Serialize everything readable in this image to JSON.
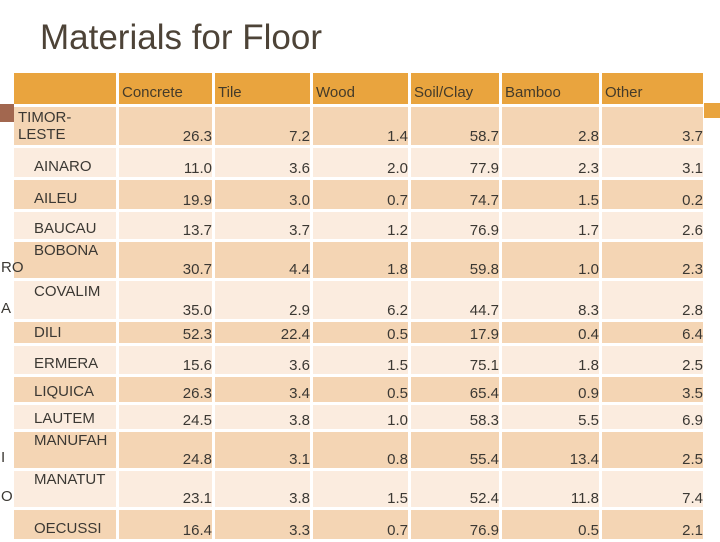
{
  "slide": {
    "title": "Materials for Floor"
  },
  "colors": {
    "header_bg": "#E9A43E",
    "header_text": "#443B2A",
    "row_dark": "#F4D5B4",
    "row_light": "#FBECDF",
    "table_text": "#3B3833",
    "title_text": "#4D4337",
    "accent_left_square": "#A2674F",
    "accent_right_square": "#E9A43E"
  },
  "table": {
    "corner_label": "",
    "columns": [
      "Concrete",
      "Tile",
      "Wood",
      "Soil/Clay",
      "Bamboo",
      "Other"
    ],
    "rows": [
      {
        "name": "TIMOR-LESTE",
        "label_lines": [
          "TIMOR-",
          "LESTE"
        ],
        "values": [
          "26.3",
          "7.2",
          "1.4",
          "58.7",
          "2.8",
          "3.7"
        ]
      },
      {
        "name": "AINARO",
        "label_lines": [
          "AINARO"
        ],
        "values": [
          "11.0",
          "3.6",
          "2.0",
          "77.9",
          "2.3",
          "3.1"
        ]
      },
      {
        "name": "AILEU",
        "label_lines": [
          "AILEU"
        ],
        "values": [
          "19.9",
          "3.0",
          "0.7",
          "74.7",
          "1.5",
          "0.2"
        ]
      },
      {
        "name": "BAUCAU",
        "label_lines": [
          "BAUCAU"
        ],
        "values": [
          "13.7",
          "3.7",
          "1.2",
          "76.9",
          "1.7",
          "2.6"
        ]
      },
      {
        "name": "BOBONARO",
        "label_lines": [
          "BOBONA",
          "RO"
        ],
        "values": [
          "30.7",
          "4.4",
          "1.8",
          "59.8",
          "1.0",
          "2.3"
        ]
      },
      {
        "name": "COVALIMA",
        "label_lines": [
          "COVALIM",
          "A"
        ],
        "values": [
          "35.0",
          "2.9",
          "6.2",
          "44.7",
          "8.3",
          "2.8"
        ]
      },
      {
        "name": "DILI",
        "label_lines": [
          "DILI"
        ],
        "values": [
          "52.3",
          "22.4",
          "0.5",
          "17.9",
          "0.4",
          "6.4"
        ]
      },
      {
        "name": "ERMERA",
        "label_lines": [
          "ERMERA"
        ],
        "values": [
          "15.6",
          "3.6",
          "1.5",
          "75.1",
          "1.8",
          "2.5"
        ]
      },
      {
        "name": "LIQUICA",
        "label_lines": [
          "LIQUICA"
        ],
        "values": [
          "26.3",
          "3.4",
          "0.5",
          "65.4",
          "0.9",
          "3.5"
        ]
      },
      {
        "name": "LAUTEM",
        "label_lines": [
          "LAUTEM"
        ],
        "values": [
          "24.5",
          "3.8",
          "1.0",
          "58.3",
          "5.5",
          "6.9"
        ]
      },
      {
        "name": "MANUFAHI",
        "label_lines": [
          "MANUFAH",
          "I"
        ],
        "values": [
          "24.8",
          "3.1",
          "0.8",
          "55.4",
          "13.4",
          "2.5"
        ]
      },
      {
        "name": "MANATUTO",
        "label_lines": [
          "MANATUT",
          "O"
        ],
        "values": [
          "23.1",
          "3.8",
          "1.5",
          "52.4",
          "11.8",
          "7.4"
        ]
      },
      {
        "name": "OECUSSI",
        "label_lines": [
          "OECUSSI"
        ],
        "values": [
          "16.4",
          "3.3",
          "0.7",
          "76.9",
          "0.5",
          "2.1"
        ]
      }
    ]
  }
}
